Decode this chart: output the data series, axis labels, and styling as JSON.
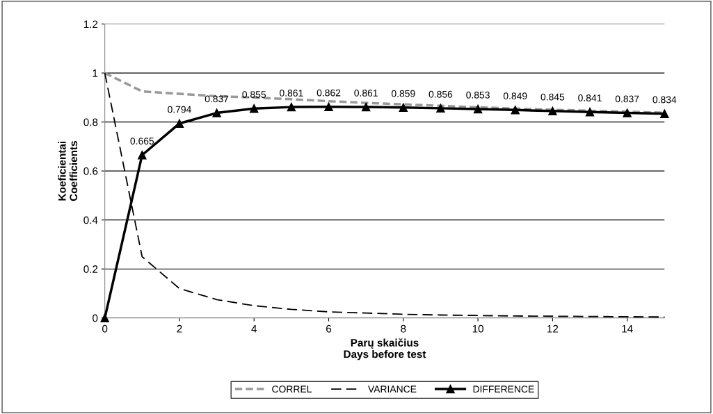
{
  "chart_data": {
    "type": "line",
    "xlabel": "Parų skaičius\nDays before test",
    "ylabel": "Koeficientai\nCoefficients",
    "x": [
      0,
      1,
      2,
      3,
      4,
      5,
      6,
      7,
      8,
      9,
      10,
      11,
      12,
      13,
      14,
      15
    ],
    "series": [
      {
        "name": "CORREL",
        "color": "#999999",
        "line_style": "dashed",
        "marker": "none",
        "values": [
          1.0,
          0.925,
          0.915,
          0.905,
          0.9,
          0.893,
          0.885,
          0.878,
          0.872,
          0.866,
          0.86,
          0.855,
          0.85,
          0.846,
          0.842,
          0.838
        ]
      },
      {
        "name": "VARIANCE",
        "color": "#000000",
        "line_style": "dashed",
        "marker": "none",
        "values": [
          1.0,
          0.25,
          0.12,
          0.075,
          0.05,
          0.035,
          0.025,
          0.02,
          0.015,
          0.012,
          0.01,
          0.008,
          0.007,
          0.006,
          0.005,
          0.004
        ]
      },
      {
        "name": "DIFFERENCE",
        "color": "#000000",
        "line_style": "solid",
        "marker": "triangle",
        "values": [
          0,
          0.665,
          0.794,
          0.837,
          0.855,
          0.861,
          0.862,
          0.861,
          0.859,
          0.856,
          0.853,
          0.849,
          0.845,
          0.841,
          0.837,
          0.834
        ],
        "value_labels": [
          null,
          "0.665",
          "0.794",
          "0.837",
          "0.855",
          "0.861",
          "0.862",
          "0.861",
          "0.859",
          "0.856",
          "0.853",
          "0.849",
          "0.845",
          "0.841",
          "0.837",
          "0.834"
        ]
      }
    ],
    "xlim": [
      0,
      15
    ],
    "xticks": [
      0,
      2,
      4,
      6,
      8,
      10,
      12,
      14
    ],
    "ylim": [
      0,
      1.2
    ],
    "yticks": [
      0,
      0.2,
      0.4,
      0.6,
      0.8,
      1,
      1.2
    ],
    "grid": "y",
    "legend": "bottom"
  }
}
